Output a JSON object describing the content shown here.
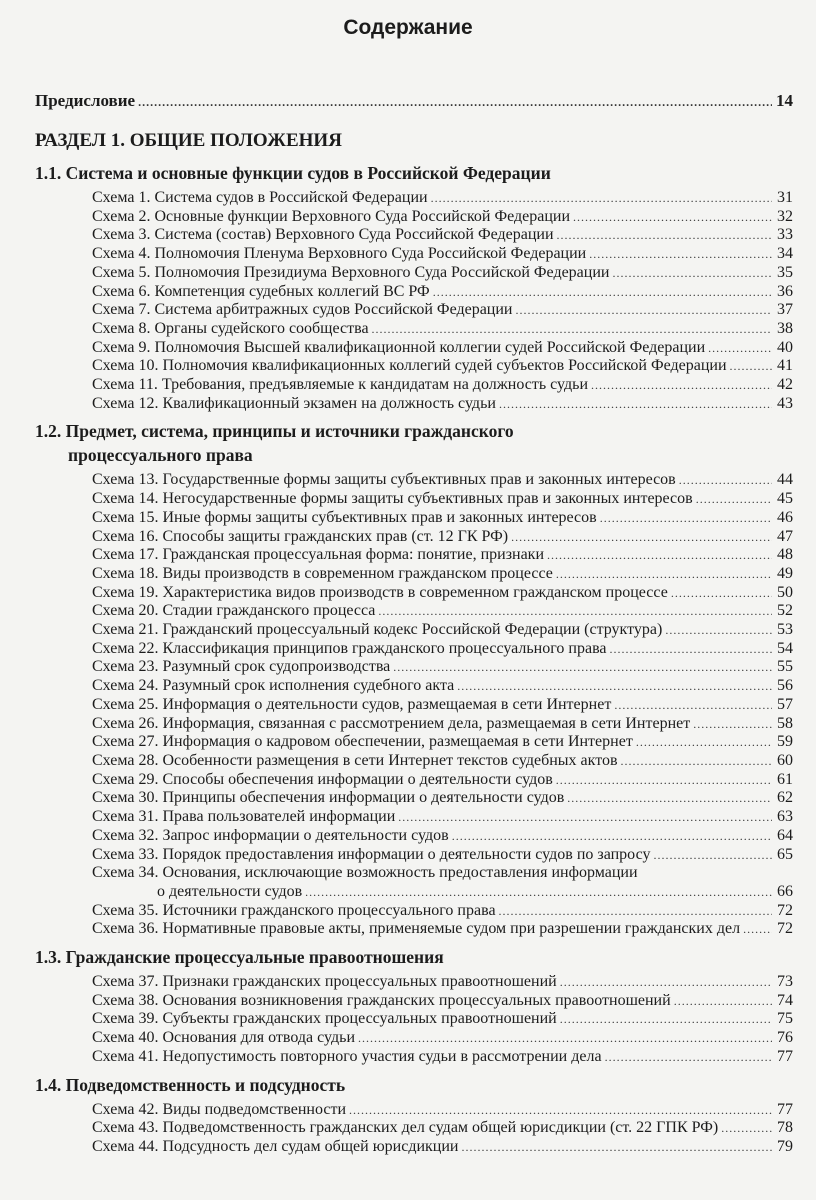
{
  "title": "Содержание",
  "toc": [
    {
      "type": "preface",
      "label": "Предисловие",
      "page": "14"
    },
    {
      "type": "part",
      "label": "РАЗДЕЛ 1. ОБЩИЕ ПОЛОЖЕНИЯ"
    },
    {
      "type": "section",
      "label": "1.1. Система и основные функции судов в Российской Федерации"
    },
    {
      "type": "schema",
      "label": "Схема 1. Система судов в Российской Федерации",
      "page": "31"
    },
    {
      "type": "schema",
      "label": "Схема 2. Основные функции Верховного Суда Российской Федерации",
      "page": "32"
    },
    {
      "type": "schema",
      "label": "Схема 3. Система (состав) Верховного Суда Российской Федерации",
      "page": "33"
    },
    {
      "type": "schema",
      "label": "Схема 4. Полномочия Пленума Верховного Суда Российской Федерации",
      "page": "34"
    },
    {
      "type": "schema",
      "label": "Схема 5. Полномочия Президиума Верховного Суда Российской Федерации",
      "page": "35"
    },
    {
      "type": "schema",
      "label": "Схема 6. Компетенция судебных коллегий ВС РФ",
      "page": "36"
    },
    {
      "type": "schema",
      "label": "Схема 7. Система арбитражных судов Российской Федерации",
      "page": "37"
    },
    {
      "type": "schema",
      "label": "Схема 8. Органы судейского сообщества",
      "page": "38"
    },
    {
      "type": "schema",
      "label": "Схема 9. Полномочия Высшей квалификационной коллегии судей Российской Федерации",
      "page": "40"
    },
    {
      "type": "schema",
      "label": "Схема 10. Полномочия квалификационных коллегий судей субъектов Российской Федерации",
      "page": "41"
    },
    {
      "type": "schema",
      "label": "Схема 11. Требования, предъявляемые к кандидатам на должность судьи",
      "page": "42"
    },
    {
      "type": "schema",
      "label": "Схема 12. Квалификационный экзамен на должность судьи",
      "page": "43"
    },
    {
      "type": "section",
      "label": "1.2. Предмет, система, принципы и источники гражданского",
      "label2": "процессуального права"
    },
    {
      "type": "schema",
      "label": "Схема 13. Государственные формы защиты субъективных прав и законных интересов",
      "page": "44"
    },
    {
      "type": "schema",
      "label": "Схема 14. Негосударственные формы защиты субъективных прав и законных интересов",
      "page": "45"
    },
    {
      "type": "schema",
      "label": "Схема 15. Иные формы защиты субъективных прав и законных интересов",
      "page": "46"
    },
    {
      "type": "schema",
      "label": "Схема 16. Способы защиты гражданских прав (ст. 12 ГК РФ)",
      "page": "47"
    },
    {
      "type": "schema",
      "label": "Схема 17. Гражданская процессуальная форма: понятие, признаки",
      "page": "48"
    },
    {
      "type": "schema",
      "label": "Схема 18. Виды производств в современном гражданском процессе",
      "page": "49"
    },
    {
      "type": "schema",
      "label": "Схема 19. Характеристика видов производств в современном гражданском процессе",
      "page": "50"
    },
    {
      "type": "schema",
      "label": "Схема 20. Стадии гражданского процесса",
      "page": "52"
    },
    {
      "type": "schema",
      "label": "Схема 21. Гражданский процессуальный кодекс Российской Федерации (структура)",
      "page": "53"
    },
    {
      "type": "schema",
      "label": "Схема 22. Классификация принципов гражданского процессуального права",
      "page": "54"
    },
    {
      "type": "schema",
      "label": "Схема 23. Разумный срок судопроизводства",
      "page": "55"
    },
    {
      "type": "schema",
      "label": "Схема 24. Разумный срок исполнения судебного акта",
      "page": "56"
    },
    {
      "type": "schema",
      "label": "Схема 25. Информация о деятельности судов, размещаемая в сети Интернет",
      "page": "57"
    },
    {
      "type": "schema",
      "label": "Схема 26. Информация, связанная с рассмотрением дела, размещаемая в сети Интернет",
      "page": "58"
    },
    {
      "type": "schema",
      "label": "Схема 27. Информация о кадровом обеспечении, размещаемая в сети Интернет",
      "page": "59"
    },
    {
      "type": "schema",
      "label": "Схема 28. Особенности размещения в сети Интернет текстов судебных актов",
      "page": "60"
    },
    {
      "type": "schema",
      "label": "Схема 29. Способы обеспечения информации о деятельности судов",
      "page": "61"
    },
    {
      "type": "schema",
      "label": "Схема 30. Принципы обеспечения информации о деятельности судов",
      "page": "62"
    },
    {
      "type": "schema",
      "label": "Схема 31. Права пользователей информации",
      "page": "63"
    },
    {
      "type": "schema",
      "label": "Схема 32. Запрос информации о деятельности судов",
      "page": "64"
    },
    {
      "type": "schema",
      "label": "Схема 33. Порядок предоставления информации о деятельности судов по запросу",
      "page": "65"
    },
    {
      "type": "schema",
      "label": "Схема 34. Основания, исключающие возможность предоставления информации",
      "label2": "о деятельности судов",
      "page": "66"
    },
    {
      "type": "schema",
      "label": "Схема 35. Источники гражданского процессуального права",
      "page": "72"
    },
    {
      "type": "schema",
      "label": "Схема 36. Нормативные правовые акты, применяемые судом при разрешении гражданских дел",
      "page": "72"
    },
    {
      "type": "section",
      "label": "1.3. Гражданские процессуальные правоотношения"
    },
    {
      "type": "schema",
      "label": "Схема 37. Признаки гражданских процессуальных правоотношений",
      "page": "73"
    },
    {
      "type": "schema",
      "label": "Схема 38. Основания возникновения гражданских процессуальных правоотношений",
      "page": "74"
    },
    {
      "type": "schema",
      "label": "Схема 39. Субъекты гражданских процессуальных правоотношений",
      "page": "75"
    },
    {
      "type": "schema",
      "label": "Схема 40. Основания для отвода судьи",
      "page": "76"
    },
    {
      "type": "schema",
      "label": "Схема 41. Недопустимость повторного участия судьи в рассмотрении дела",
      "page": "77"
    },
    {
      "type": "section",
      "label": "1.4. Подведомственность и подсудность"
    },
    {
      "type": "schema",
      "label": "Схема 42. Виды подведомственности",
      "page": "77"
    },
    {
      "type": "schema",
      "label": "Схема 43. Подведомственность гражданских дел судам общей юрисдикции (ст. 22 ГПК РФ)",
      "page": "78"
    },
    {
      "type": "schema",
      "label": "Схема 44. Подсудность дел судам общей юрисдикции",
      "page": "79"
    }
  ]
}
